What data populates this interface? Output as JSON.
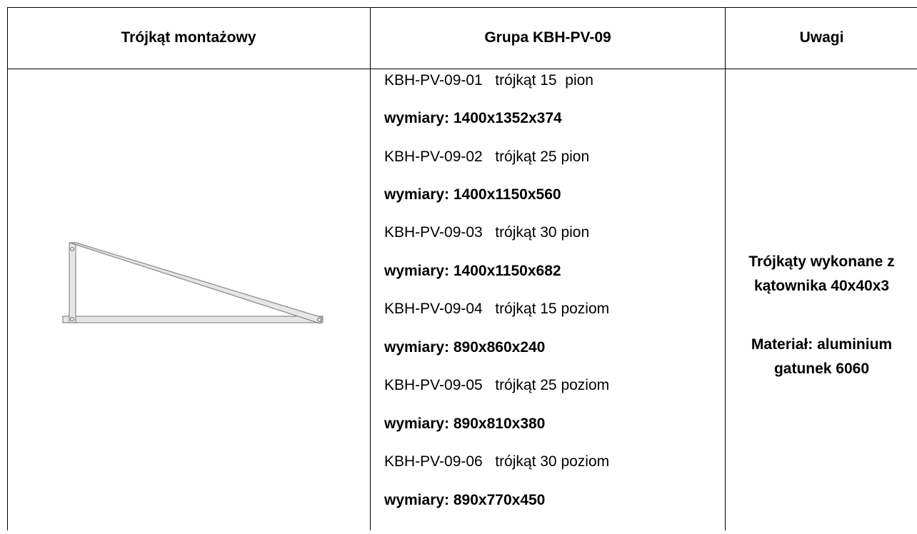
{
  "headers": {
    "col1": "Trójkąt montażowy",
    "col2": "Grupa KBH-PV-09",
    "col3": "Uwagi"
  },
  "specs": [
    {
      "code": "KBH-PV-09-01   trójkąt 15  pion",
      "dims": "wymiary: 1400x1352x374"
    },
    {
      "code": "KBH-PV-09-02   trójkąt 25 pion",
      "dims": "wymiary: 1400x1150x560"
    },
    {
      "code": "KBH-PV-09-03   trójkąt 30 pion",
      "dims": "wymiary: 1400x1150x682"
    },
    {
      "code": "KBH-PV-09-04   trójkąt 15 poziom",
      "dims": "wymiary: 890x860x240"
    },
    {
      "code": "KBH-PV-09-05   trójkąt 25 poziom",
      "dims": "wymiary: 890x810x380"
    },
    {
      "code": "KBH-PV-09-06   trójkąt 30 poziom",
      "dims": "wymiary: 890x770x450"
    }
  ],
  "notes": {
    "line1": "Trójkąty wykonane z",
    "line2": "kątownika 40x40x3",
    "line3": "Materiał: aluminium",
    "line4": "gatunek 6060"
  },
  "drawing": {
    "name": "mounting-triangle",
    "stroke_color": "#888888",
    "fill_color": "#e6e6e6"
  }
}
